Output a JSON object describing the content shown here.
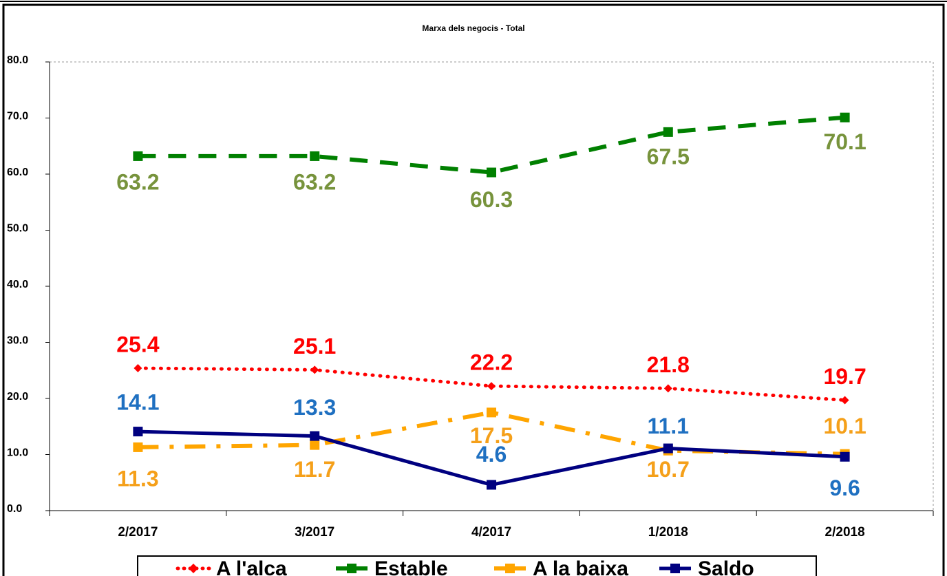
{
  "chart_data": {
    "type": "line",
    "title": "Marxa dels negocis - Total",
    "categories": [
      "2/2017",
      "3/2017",
      "4/2017",
      "1/2018",
      "2/2018"
    ],
    "series": [
      {
        "name": "A l'alca",
        "color": "#ff0000",
        "label_color": "#ff0000",
        "line_style": "dotted",
        "marker": "diamond",
        "values": [
          25.4,
          25.1,
          22.2,
          21.8,
          19.7
        ]
      },
      {
        "name": "Estable",
        "color": "#008000",
        "label_color": "#77933c",
        "line_style": "dashed",
        "marker": "square",
        "values": [
          63.2,
          63.2,
          60.3,
          67.5,
          70.1
        ]
      },
      {
        "name": "A la baixa",
        "color": "#ffa500",
        "label_color": "#f5a01a",
        "line_style": "dashdot",
        "marker": "square",
        "values": [
          11.3,
          11.7,
          17.5,
          10.7,
          10.1
        ]
      },
      {
        "name": "Saldo",
        "color": "#000080",
        "label_color": "#1f70c1",
        "line_style": "solid",
        "marker": "square",
        "values": [
          14.1,
          13.3,
          4.6,
          11.1,
          9.6
        ]
      }
    ],
    "ylim": [
      0,
      80
    ],
    "yticks": [
      {
        "value": 0,
        "label": "0.0"
      },
      {
        "value": 10,
        "label": "10.0"
      },
      {
        "value": 20,
        "label": "20.0"
      },
      {
        "value": 30,
        "label": "30.0"
      },
      {
        "value": 40,
        "label": "40.0"
      },
      {
        "value": 50,
        "label": "50.0"
      },
      {
        "value": 60,
        "label": "60.0"
      },
      {
        "value": 70,
        "label": "70.0"
      },
      {
        "value": 80,
        "label": "80.0"
      }
    ],
    "grid": false,
    "legend": "bottom"
  }
}
